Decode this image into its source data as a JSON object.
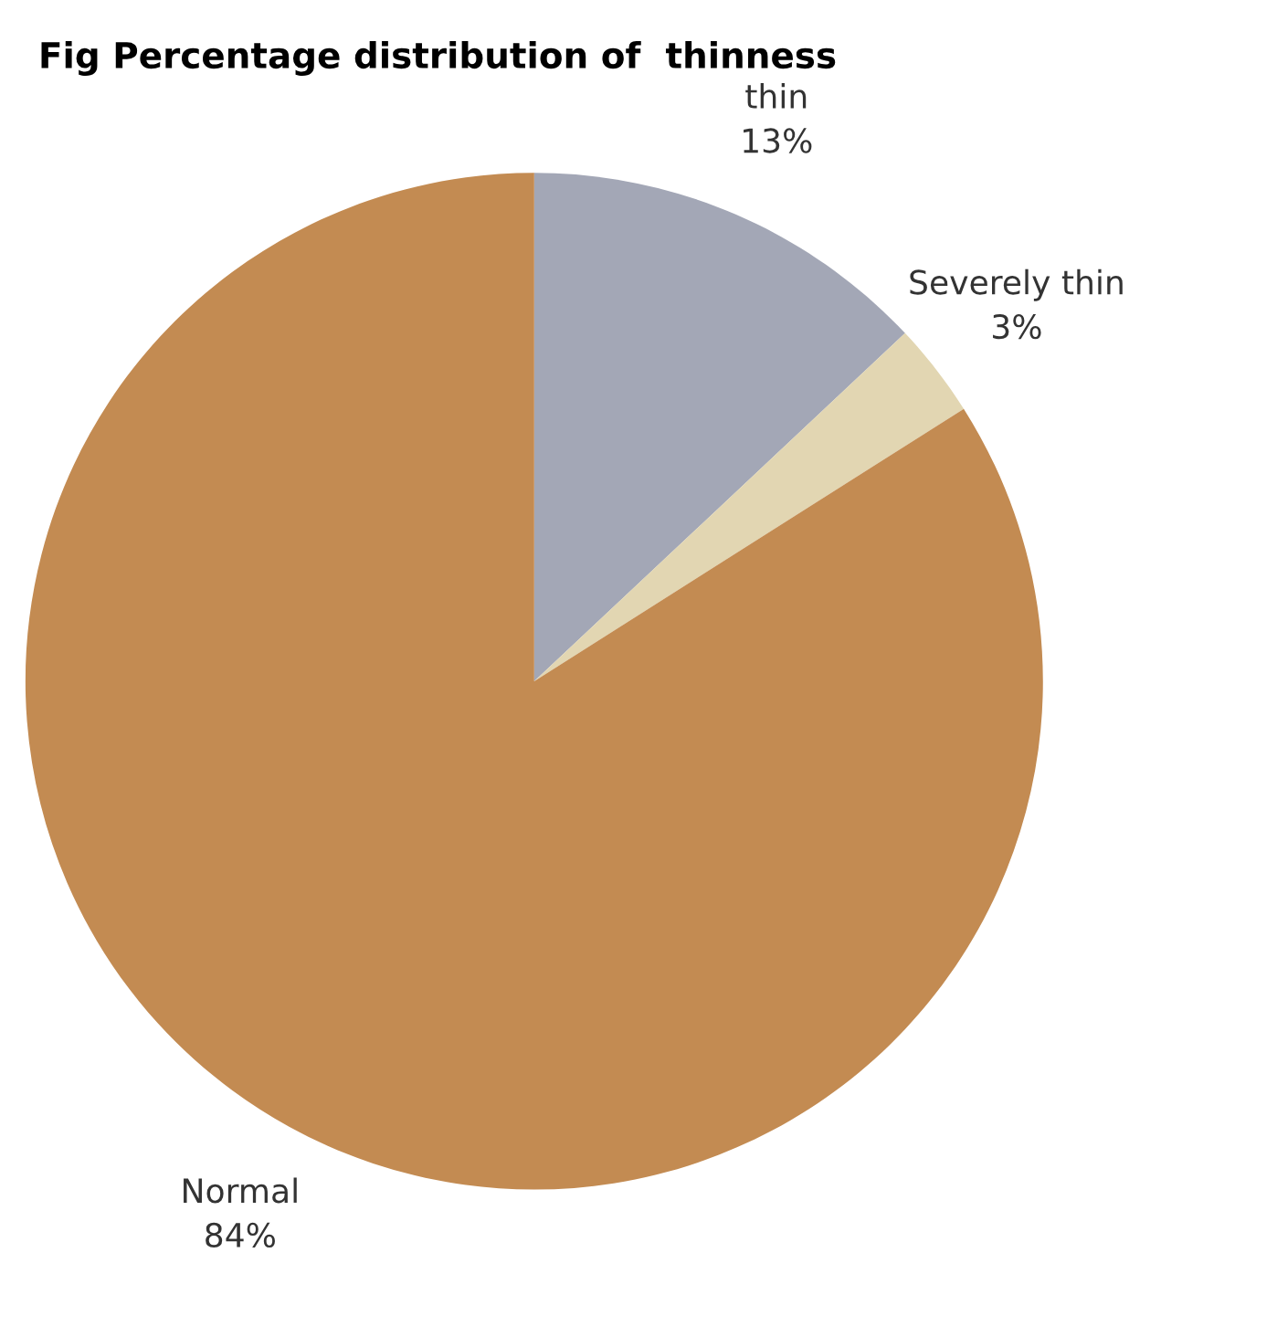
{
  "chart_data": {
    "type": "pie",
    "title": "Fig Percentage distribution of  thinness",
    "categories": [
      "thin",
      "Severely thin",
      "Normal"
    ],
    "values": [
      13,
      3,
      84
    ],
    "colors": [
      "#a3a7b6",
      "#e2d6b2",
      "#c38b52"
    ],
    "value_labels": [
      "13%",
      "3%",
      "84%"
    ]
  }
}
